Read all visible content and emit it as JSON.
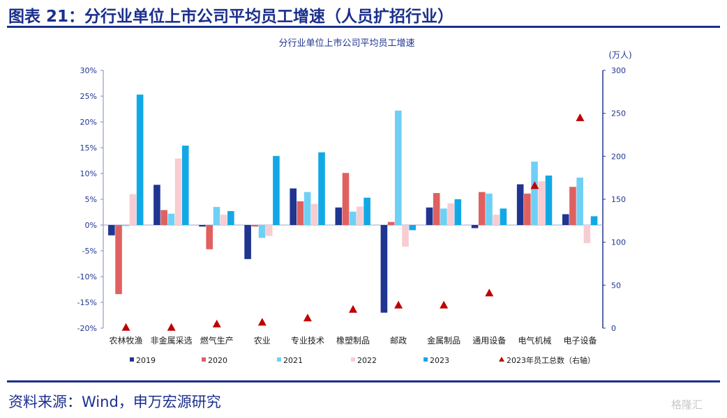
{
  "header": {
    "title": "图表 21：分行业单位上市公司平均员工增速（人员扩招行业）"
  },
  "footer": {
    "source": "资料来源：Wind，申万宏源研究",
    "watermark": "格隆汇"
  },
  "chart_data": {
    "type": "bar",
    "title": "分行业单位上市公司平均员工增速",
    "right_axis_unit": "(万人)",
    "categories": [
      "农林牧渔",
      "非金属采选",
      "燃气生产",
      "农业",
      "专业技术",
      "橡塑制品",
      "邮政",
      "金属制品",
      "通用设备",
      "电气机械",
      "电子设备"
    ],
    "left_axis": {
      "min": -20,
      "max": 30,
      "step": 5,
      "unit": "%",
      "ticks": [
        "-20%",
        "-15%",
        "-10%",
        "-5%",
        "0%",
        "5%",
        "10%",
        "15%",
        "20%",
        "25%",
        "30%"
      ]
    },
    "right_axis": {
      "min": 0,
      "max": 300,
      "step": 50,
      "ticks": [
        "0",
        "50",
        "100",
        "150",
        "200",
        "250",
        "300"
      ]
    },
    "series": [
      {
        "name": "2019",
        "color": "#1f3590",
        "values": [
          -2.0,
          7.8,
          -0.3,
          -6.6,
          7.1,
          3.4,
          -17.0,
          3.4,
          -0.6,
          7.9,
          2.1
        ]
      },
      {
        "name": "2020",
        "color": "#e06060",
        "values": [
          -13.4,
          2.9,
          -4.7,
          -0.3,
          4.6,
          10.1,
          0.6,
          6.2,
          6.4,
          6.1,
          7.4
        ]
      },
      {
        "name": "2021",
        "color": "#6fd0f5",
        "values": [
          -0.2,
          2.2,
          3.5,
          -2.5,
          6.4,
          2.6,
          22.2,
          3.2,
          6.1,
          12.3,
          9.2
        ]
      },
      {
        "name": "2022",
        "color": "#f7cdd2",
        "values": [
          6.0,
          12.9,
          2.0,
          -2.1,
          4.1,
          3.6,
          -4.2,
          4.2,
          2.0,
          8.5,
          -3.5
        ]
      },
      {
        "name": "2023",
        "color": "#11a8e6",
        "values": [
          25.3,
          15.4,
          2.7,
          13.4,
          14.1,
          5.3,
          -1.0,
          5.0,
          3.2,
          9.6,
          1.7
        ]
      }
    ],
    "line_series": {
      "name": "2023年员工总数（右轴）",
      "color": "#c00000",
      "axis": "right",
      "marker": "triangle",
      "values": [
        1,
        1,
        5,
        7,
        12,
        22,
        27,
        27,
        41,
        166,
        245
      ]
    }
  }
}
